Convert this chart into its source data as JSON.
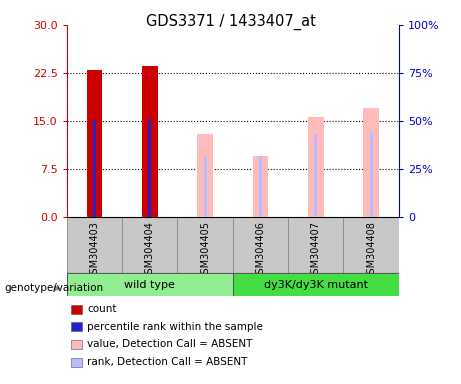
{
  "title": "GDS3371 / 1433407_at",
  "samples": [
    "GSM304403",
    "GSM304404",
    "GSM304405",
    "GSM304406",
    "GSM304407",
    "GSM304408"
  ],
  "count_values": [
    23.0,
    23.6,
    null,
    null,
    null,
    null
  ],
  "percentile_values": [
    15.1,
    15.3,
    null,
    null,
    null,
    null
  ],
  "absent_value_values": [
    null,
    null,
    43.0,
    32.0,
    52.0,
    57.0
  ],
  "absent_rank_values": [
    null,
    null,
    32.0,
    32.0,
    43.0,
    44.0
  ],
  "ylim_left": [
    0,
    30
  ],
  "ylim_right": [
    0,
    100
  ],
  "yticks_left": [
    0,
    7.5,
    15,
    22.5,
    30
  ],
  "yticks_right": [
    0,
    25,
    50,
    75,
    100
  ],
  "count_color": "#cc0000",
  "percentile_color": "#2222cc",
  "absent_value_color": "#ffbbbb",
  "absent_rank_color": "#bbbbff",
  "label_area_color": "#c8c8c8",
  "group_wt_color": "#90ee90",
  "group_mut_color": "#44dd44",
  "legend_items": [
    {
      "color": "#cc0000",
      "label": "count"
    },
    {
      "color": "#2222cc",
      "label": "percentile rank within the sample"
    },
    {
      "color": "#ffbbbb",
      "label": "value, Detection Call = ABSENT"
    },
    {
      "color": "#bbbbff",
      "label": "rank, Detection Call = ABSENT"
    }
  ]
}
